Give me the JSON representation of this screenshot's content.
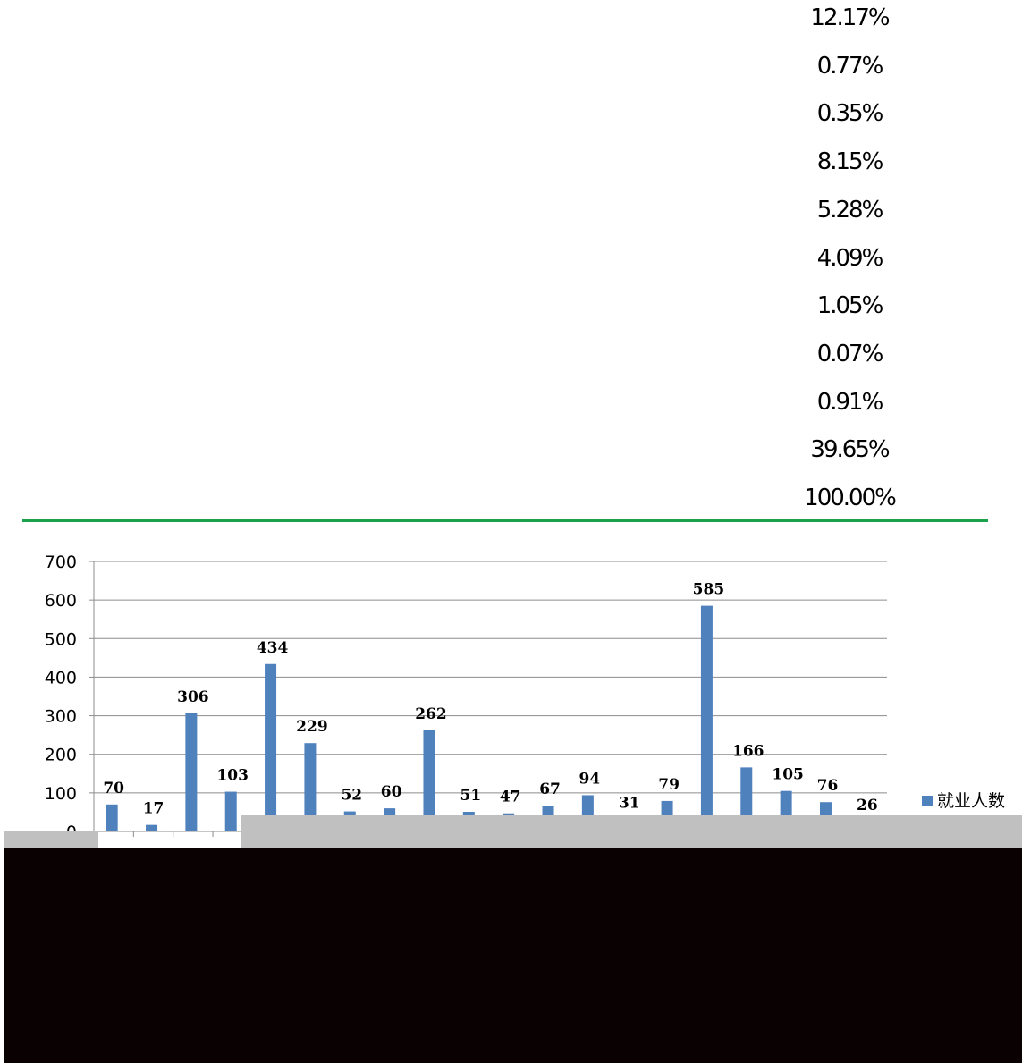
{
  "percentages": [
    "12.17%",
    "0.77%",
    "0.35%",
    "8.15%",
    "5.28%",
    "4.09%",
    "1.05%",
    "0.07%",
    "0.91%",
    "39.65%",
    "100.00%"
  ],
  "colors": {
    "divider": "#1aa34a",
    "bar": "#4f81bd",
    "bar_shadow": "#17375e",
    "band_gray": "#c0c0c0",
    "band_dark": "#0a0202",
    "gridline": "#8c8c8c"
  },
  "chart_data": {
    "type": "bar",
    "values": [
      70,
      17,
      306,
      103,
      434,
      229,
      52,
      60,
      262,
      51,
      47,
      67,
      94,
      31,
      79,
      585,
      166,
      105,
      76,
      26
    ],
    "data_labels": [
      "70",
      "17",
      "306",
      "103",
      "434",
      "229",
      "52",
      "60",
      "262",
      "51",
      "47",
      "67",
      "94",
      "31",
      "79",
      "585",
      "166",
      "105",
      "76",
      "26"
    ],
    "ylim": [
      0,
      700
    ],
    "yticks": [
      "0",
      "100",
      "200",
      "300",
      "400",
      "500",
      "600",
      "700"
    ],
    "grid": true,
    "legend": {
      "placement": "right",
      "entries": [
        "就业人数"
      ]
    },
    "series": [
      {
        "name": "就业人数"
      }
    ]
  }
}
